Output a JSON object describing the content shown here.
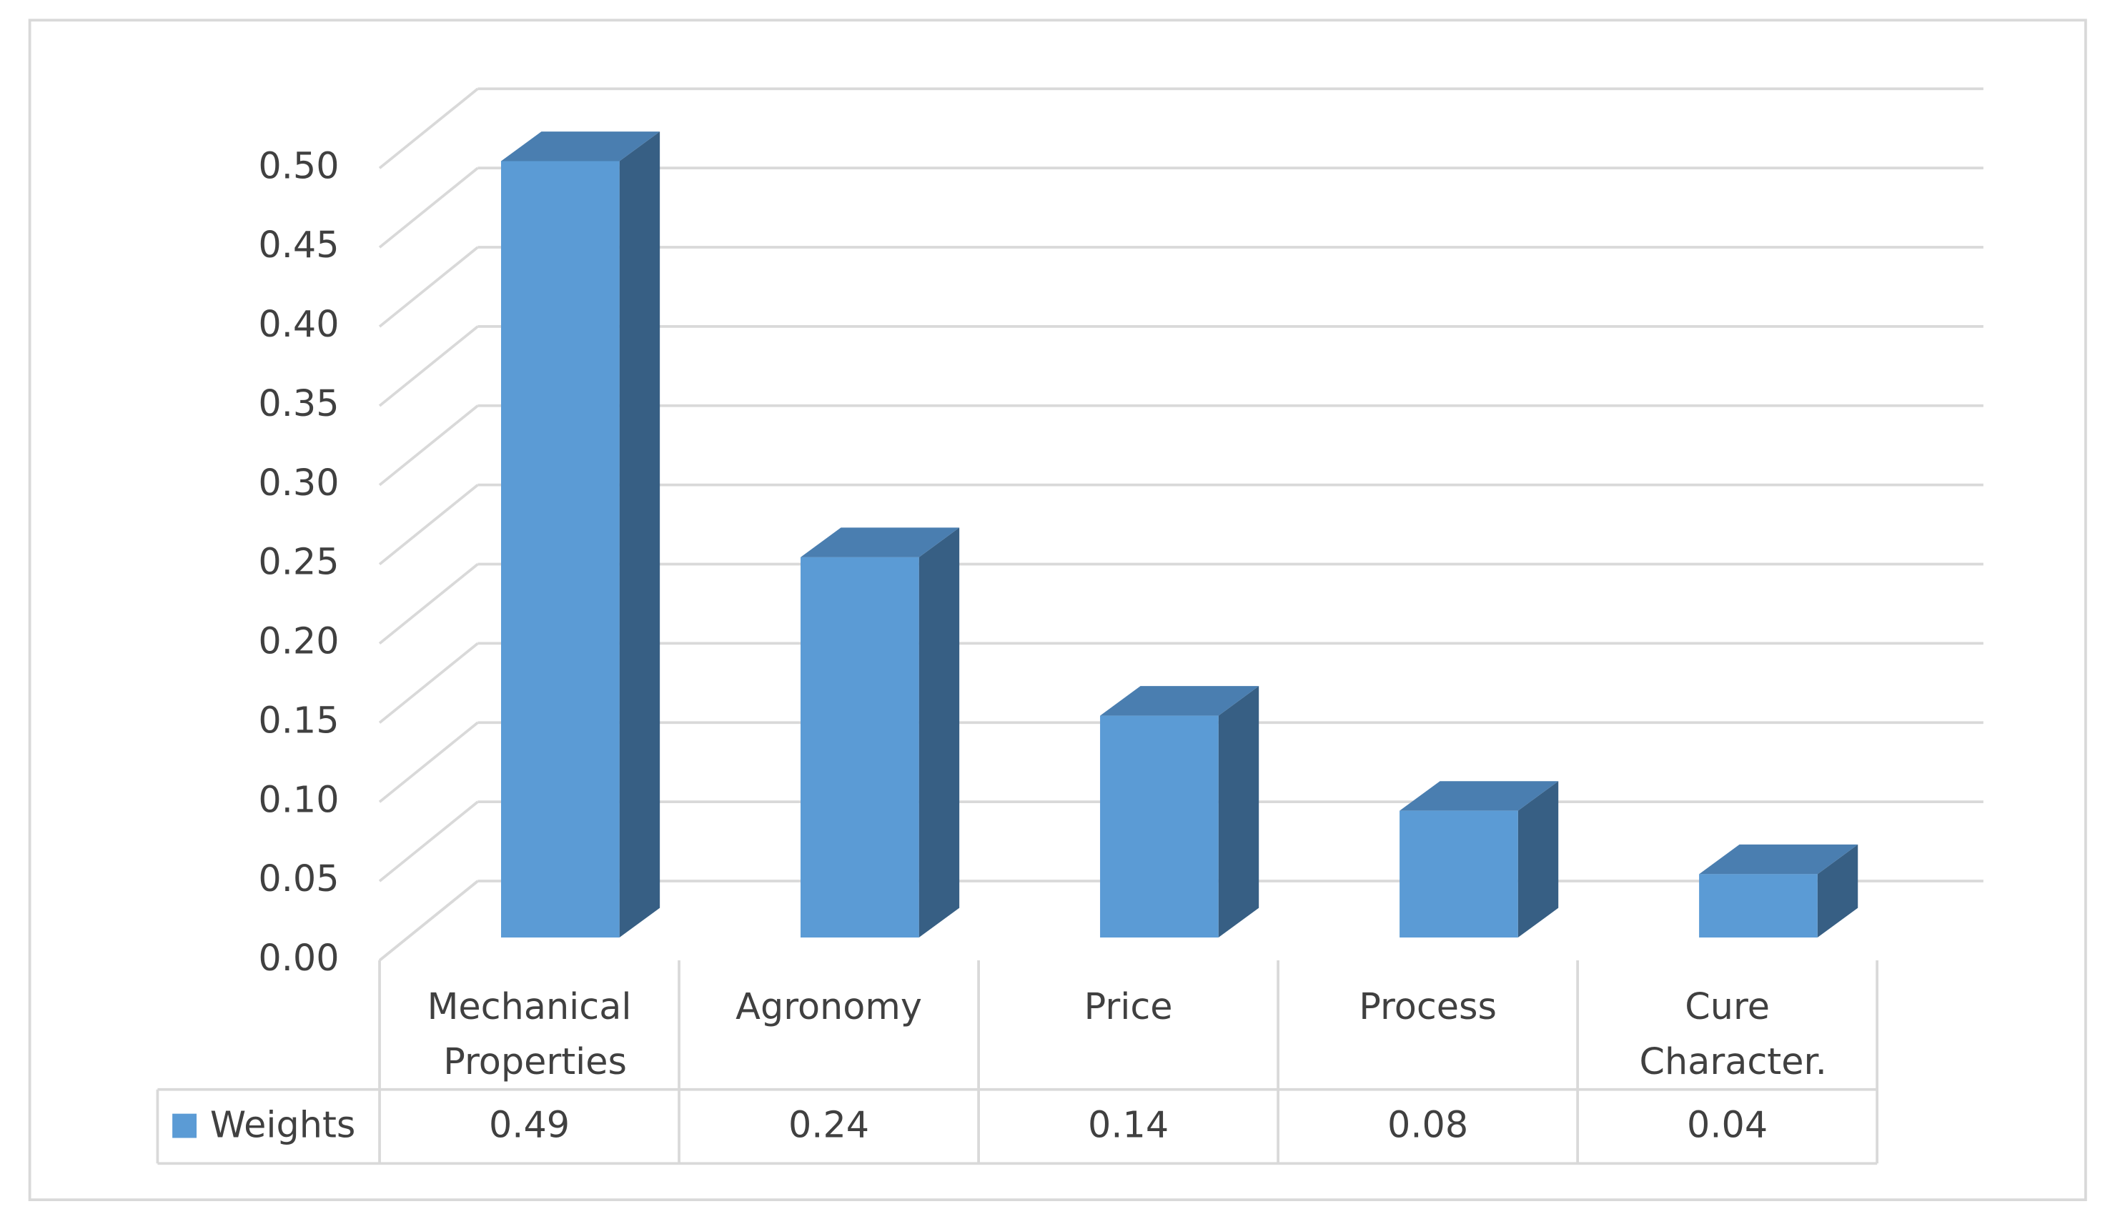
{
  "chart_data": {
    "type": "bar",
    "categories": [
      "Mechanical Properties",
      "Agronomy",
      "Price",
      "Process",
      "Cure Character."
    ],
    "series": [
      {
        "name": "Weights",
        "color": "#5b9bd5",
        "values": [
          0.49,
          0.24,
          0.14,
          0.08,
          0.04
        ]
      }
    ],
    "ylim": [
      0,
      0.5
    ],
    "yticks": [
      {
        "value": 0,
        "label": "0.00"
      },
      0.05,
      {
        "value": 0.1,
        "label": "0.10"
      },
      0.15,
      {
        "value": 0.2,
        "label": "0.20"
      },
      0.25,
      {
        "value": 0.3,
        "label": "0.30"
      },
      0.35,
      {
        "value": 0.4,
        "label": "0.40"
      },
      0.45,
      {
        "value": 0.5,
        "label": "0.50"
      }
    ],
    "grid": true
  }
}
